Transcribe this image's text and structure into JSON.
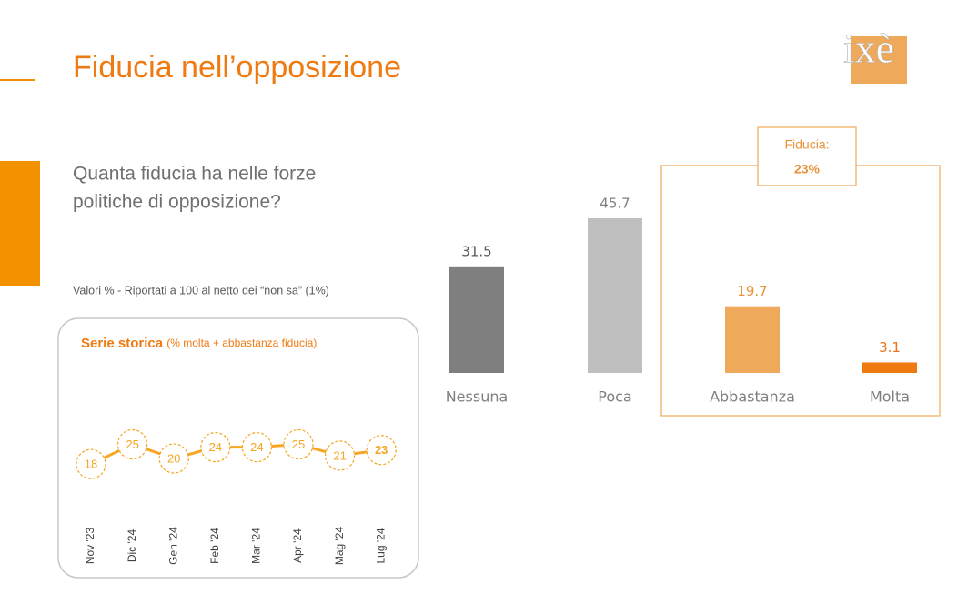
{
  "title": "Fiducia nell’opposizione",
  "logo": "ixè",
  "question_lines": [
    "Quanta fiducia ha nelle forze",
    "politiche di opposizione?"
  ],
  "note": "Valori % - Riportati a 100 al netto dei “non sa” (1%)",
  "chart_data": [
    {
      "type": "bar",
      "categories": [
        "Nessuna",
        "Poca",
        "Abbastanza",
        "Molta"
      ],
      "values": [
        31.5,
        45.7,
        19.7,
        3.1
      ],
      "value_labels": [
        "31.5",
        "45.7",
        "19.7",
        "3.1"
      ],
      "colors": [
        "#7f7f7f",
        "#bfbfbf",
        "#eea95b",
        "#f07a12"
      ],
      "label_colors": [
        "#595959",
        "#7f7f7f",
        "#e8923a",
        "#e8731a"
      ],
      "annotation": {
        "title": "Fiducia:",
        "value": "23%"
      }
    },
    {
      "type": "line",
      "title": "Serie storica",
      "subtitle": "(% molta + abbastanza fiducia)",
      "categories": [
        "Nov '23",
        "Dic '24",
        "Gen '24",
        "Feb '24",
        "Mar '24",
        "Apr '24",
        "Mag '24",
        "Lug '24"
      ],
      "values": [
        18,
        25,
        20,
        24,
        24,
        25,
        21,
        23
      ],
      "color": "#f5a623"
    }
  ]
}
